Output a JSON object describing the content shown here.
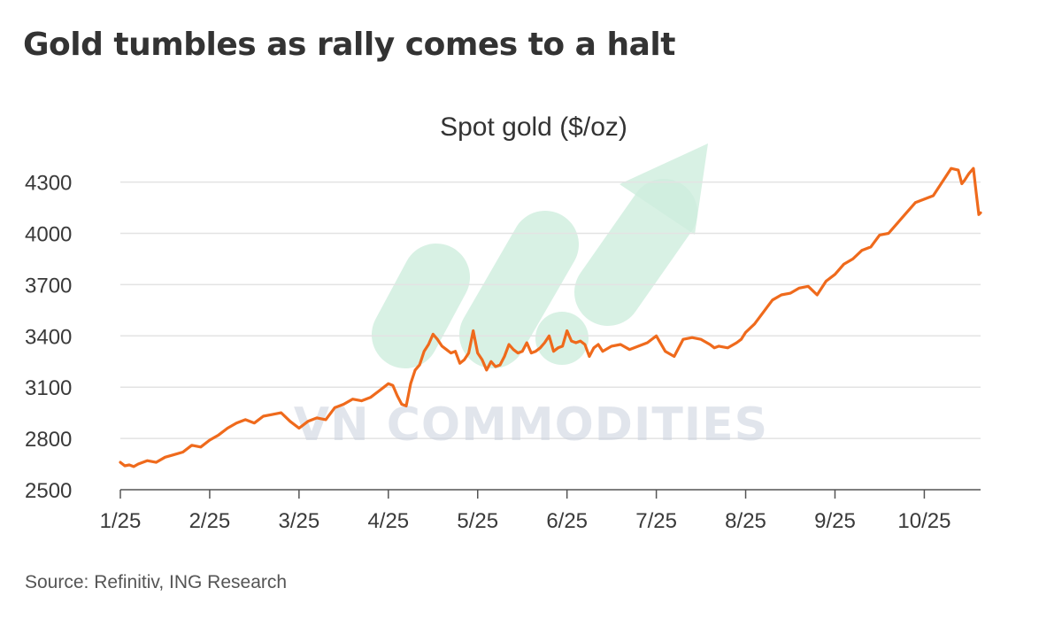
{
  "title": "Gold tumbles as rally comes to a halt",
  "source": "Source: Refinitiv, ING Research",
  "watermark": "VN COMMODITIES",
  "colors": {
    "line": "#ef6a1c",
    "grid": "#e3e3e3",
    "axis": "#555555",
    "watermark_green": "#b5e3cd",
    "watermark_text": "#c9cfdc"
  },
  "chart_data": {
    "type": "line",
    "title": "Spot gold ($/oz)",
    "xlabel": "",
    "ylabel": "",
    "ylim": [
      2500,
      4500
    ],
    "yticks": [
      2500,
      2800,
      3100,
      3400,
      3700,
      4000,
      4300
    ],
    "xlim": [
      0,
      9.63
    ],
    "xticks": [
      {
        "x": 0,
        "label": "1/25"
      },
      {
        "x": 1,
        "label": "2/25"
      },
      {
        "x": 2,
        "label": "3/25"
      },
      {
        "x": 3,
        "label": "4/25"
      },
      {
        "x": 4,
        "label": "5/25"
      },
      {
        "x": 5,
        "label": "6/25"
      },
      {
        "x": 6,
        "label": "7/25"
      },
      {
        "x": 7,
        "label": "8/25"
      },
      {
        "x": 8,
        "label": "9/25"
      },
      {
        "x": 9,
        "label": "10/25"
      }
    ],
    "grid": true,
    "legend": "none",
    "series": [
      {
        "x": [
          0,
          0.05,
          0.1,
          0.15,
          0.2,
          0.3,
          0.4,
          0.5,
          0.6,
          0.7,
          0.8,
          0.9,
          1.0,
          1.1,
          1.2,
          1.3,
          1.4,
          1.5,
          1.6,
          1.7,
          1.8,
          1.9,
          2.0,
          2.1,
          2.2,
          2.3,
          2.4,
          2.5,
          2.6,
          2.7,
          2.8,
          2.9,
          2.95,
          3.0,
          3.05,
          3.1,
          3.15,
          3.2,
          3.25,
          3.3,
          3.35,
          3.4,
          3.45,
          3.5,
          3.55,
          3.6,
          3.65,
          3.7,
          3.75,
          3.8,
          3.85,
          3.9,
          3.95,
          4.0,
          4.05,
          4.1,
          4.15,
          4.2,
          4.25,
          4.3,
          4.35,
          4.4,
          4.45,
          4.5,
          4.55,
          4.6,
          4.65,
          4.7,
          4.75,
          4.8,
          4.85,
          4.9,
          4.95,
          5.0,
          5.05,
          5.1,
          5.15,
          5.2,
          5.25,
          5.3,
          5.35,
          5.4,
          5.5,
          5.6,
          5.7,
          5.8,
          5.9,
          6.0,
          6.1,
          6.2,
          6.3,
          6.4,
          6.5,
          6.6,
          6.65,
          6.7,
          6.8,
          6.9,
          6.95,
          7.0,
          7.1,
          7.2,
          7.3,
          7.4,
          7.5,
          7.6,
          7.7,
          7.8,
          7.9,
          8.0,
          8.1,
          8.2,
          8.3,
          8.4,
          8.5,
          8.6,
          8.7,
          8.8,
          8.9,
          9.0,
          9.1,
          9.2,
          9.3,
          9.38,
          9.42,
          9.45,
          9.5,
          9.55,
          9.58,
          9.61,
          9.63
        ],
        "values": [
          2660,
          2640,
          2645,
          2635,
          2650,
          2670,
          2660,
          2690,
          2705,
          2720,
          2760,
          2750,
          2790,
          2820,
          2860,
          2890,
          2910,
          2890,
          2930,
          2940,
          2950,
          2900,
          2860,
          2900,
          2920,
          2910,
          2980,
          3000,
          3030,
          3020,
          3040,
          3080,
          3100,
          3120,
          3110,
          3050,
          3000,
          2990,
          3120,
          3200,
          3230,
          3310,
          3350,
          3410,
          3380,
          3340,
          3320,
          3300,
          3310,
          3240,
          3260,
          3300,
          3430,
          3300,
          3260,
          3200,
          3250,
          3220,
          3230,
          3280,
          3350,
          3320,
          3300,
          3310,
          3360,
          3300,
          3310,
          3330,
          3360,
          3400,
          3310,
          3330,
          3340,
          3430,
          3370,
          3360,
          3370,
          3350,
          3280,
          3330,
          3350,
          3310,
          3340,
          3350,
          3320,
          3340,
          3360,
          3400,
          3310,
          3280,
          3380,
          3390,
          3380,
          3350,
          3330,
          3340,
          3330,
          3360,
          3380,
          3420,
          3470,
          3540,
          3610,
          3640,
          3650,
          3680,
          3690,
          3640,
          3720,
          3760,
          3820,
          3850,
          3900,
          3920,
          3990,
          4000,
          4060,
          4120,
          4180,
          4200,
          4220,
          4300,
          4380,
          4370,
          4290,
          4310,
          4350,
          4380,
          4240,
          4110,
          4120
        ]
      }
    ]
  }
}
